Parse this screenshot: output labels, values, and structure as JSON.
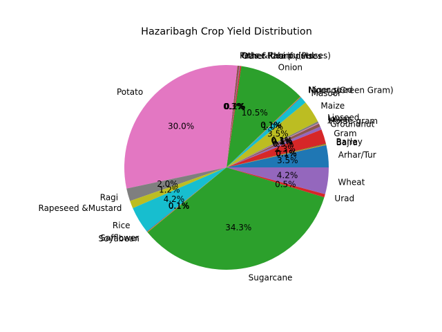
{
  "chart_data": {
    "type": "pie",
    "title": "Hazaribagh Crop Yield Distribution",
    "start_angle_deg": 0,
    "direction": "counterclockwise",
    "percent_format": "%1.1f%%",
    "palette": [
      "#1f77b4",
      "#ff7f0e",
      "#2ca02c",
      "#d62728",
      "#9467bd",
      "#8c564b",
      "#e377c2",
      "#7f7f7f",
      "#bcbd22",
      "#17becf"
    ],
    "slices": [
      {
        "label": "Arhar/Tur",
        "value": 3.5
      },
      {
        "label": "Bajra",
        "value": 0.1
      },
      {
        "label": "Barley",
        "value": 0.1
      },
      {
        "label": "Gram",
        "value": 2.3
      },
      {
        "label": "Groundnut",
        "value": 0.5
      },
      {
        "label": "Horse-gram",
        "value": 0.5
      },
      {
        "label": "Jowar",
        "value": 0.1
      },
      {
        "label": "Linseed",
        "value": 0.3
      },
      {
        "label": "Maize",
        "value": 3.5
      },
      {
        "label": "Masoor",
        "value": 1.0
      },
      {
        "label": "Moong(Green Gram)",
        "value": 0.1
      },
      {
        "label": "Niger seed",
        "value": 0.1
      },
      {
        "label": "Onion",
        "value": 10.5
      },
      {
        "label": "Other Kharif pulses",
        "value": 0.2
      },
      {
        "label": "Other Rabi pulses",
        "value": 0.1
      },
      {
        "label": "Peas & beans (Pulses)",
        "value": 0.3
      },
      {
        "label": "Potato",
        "value": 29.9
      },
      {
        "label": "Ragi",
        "value": 2.0
      },
      {
        "label": "Rapeseed &Mustard",
        "value": 1.2
      },
      {
        "label": "Rice",
        "value": 4.2
      },
      {
        "label": "Safflower",
        "value": 0.1
      },
      {
        "label": "Soyabean",
        "value": 0.1
      },
      {
        "label": "Sugarcane",
        "value": 34.2
      },
      {
        "label": "Urad",
        "value": 0.5
      },
      {
        "label": "Wheat",
        "value": 4.2
      }
    ]
  }
}
